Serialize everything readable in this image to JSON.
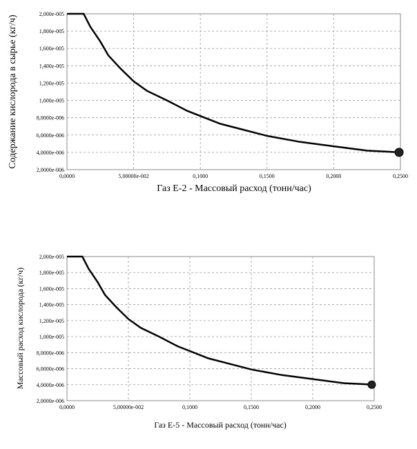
{
  "chart_data": [
    {
      "type": "line",
      "xlabel": "Газ E-2 - Массовый расход (тонн/час)",
      "ylabel": "Содержание кислорода в сырье (кг/ч)",
      "xlim": [
        0,
        0.25
      ],
      "ylim": [
        2e-05,
        0.0002
      ],
      "x_ticks": [
        "0,0000",
        "5,00000e-002",
        "0,1000",
        "0,1500",
        "0,2000",
        "0,2500"
      ],
      "y_ticks": [
        "2,0000e-006",
        "4,0000e-006",
        "6,0000e-006",
        "8,0000e-006",
        "1,000e-005",
        "1,200e-005",
        "1,400e-005",
        "1,600e-005",
        "1,800e-005",
        "2,000e-005"
      ],
      "grid": true,
      "series": [
        {
          "x": [
            0,
            0.0125,
            0.0175,
            0.025,
            0.031,
            0.04,
            0.05,
            0.06,
            0.075,
            0.09,
            0.1,
            0.115,
            0.13,
            0.15,
            0.175,
            0.2,
            0.225,
            0.25
          ],
          "y": [
            0.0002,
            0.0002,
            0.000185,
            0.000168,
            0.000152,
            0.000137,
            0.000122,
            0.000111,
            0.0001,
            8.8e-05,
            8.2e-05,
            7.3e-05,
            6.7e-05,
            5.9e-05,
            5.2e-05,
            4.7e-05,
            4.2e-05,
            4e-05
          ]
        }
      ],
      "marker_point": {
        "x": 0.249,
        "y": 4e-05
      }
    },
    {
      "type": "line",
      "xlabel": "Газ E-5 - Массовый расход (тонн/час)",
      "ylabel": "Массовый расход кислорода (кг/ч)",
      "xlim": [
        0,
        0.25
      ],
      "ylim": [
        2e-05,
        0.0002
      ],
      "x_ticks": [
        "0,0000",
        "5,00000e-002",
        "0,1000",
        "0,1500",
        "0,2000",
        "0,2500"
      ],
      "y_ticks": [
        "2,0000e-006",
        "4,0000e-006",
        "6,0000e-006",
        "8,0000e-006",
        "1,000e-005",
        "1,200e-005",
        "1,400e-005",
        "1,600e-005",
        "1,800e-005",
        "2,000e-005"
      ],
      "grid": true,
      "series": [
        {
          "x": [
            0,
            0.0125,
            0.0175,
            0.025,
            0.031,
            0.04,
            0.05,
            0.06,
            0.075,
            0.09,
            0.1,
            0.115,
            0.13,
            0.15,
            0.175,
            0.2,
            0.225,
            0.25
          ],
          "y": [
            0.0002,
            0.0002,
            0.000185,
            0.000168,
            0.000152,
            0.000137,
            0.000122,
            0.000111,
            0.0001,
            8.8e-05,
            8.2e-05,
            7.3e-05,
            6.7e-05,
            5.9e-05,
            5.2e-05,
            4.7e-05,
            4.2e-05,
            4e-05
          ]
        }
      ],
      "marker_point": {
        "x": 0.248,
        "y": 4e-05
      }
    }
  ]
}
